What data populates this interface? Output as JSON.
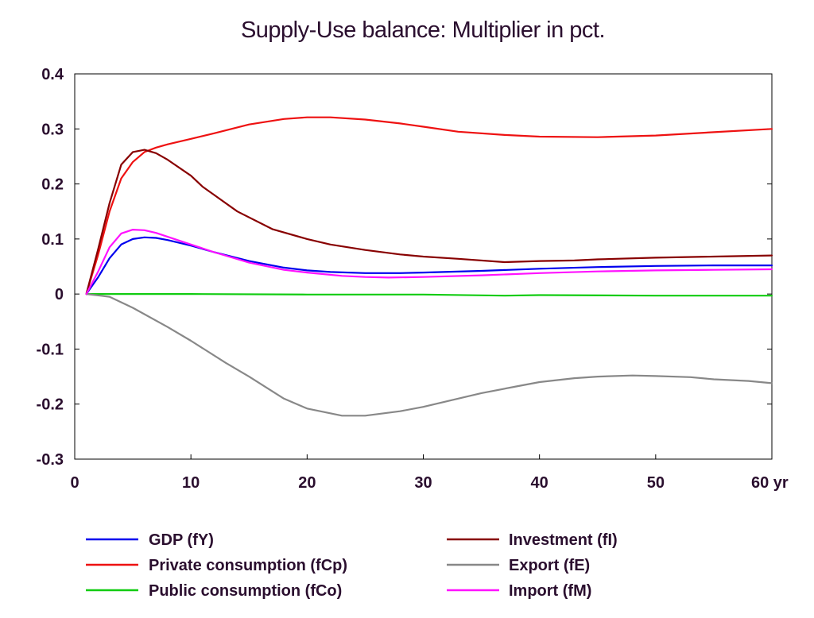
{
  "chart_data": {
    "type": "line",
    "title": "Supply-Use balance: Multiplier in pct.",
    "x_unit_label": "yr",
    "xlim": [
      0,
      60
    ],
    "ylim": [
      -0.3,
      0.4
    ],
    "x_ticks": [
      0,
      10,
      20,
      30,
      40,
      50,
      60
    ],
    "x_tick_labels": [
      "0",
      "10",
      "20",
      "30",
      "40",
      "50",
      "60 yr"
    ],
    "y_ticks": [
      -0.3,
      -0.2,
      -0.1,
      0,
      0.1,
      0.2,
      0.3,
      0.4
    ],
    "y_tick_labels": [
      "-0.3",
      "-0.2",
      "-0.1",
      "0",
      "0.1",
      "0.2",
      "0.3",
      "0.4"
    ],
    "grid": false,
    "legend_position": "bottom",
    "series": [
      {
        "name": "GDP (fY)",
        "color": "#0000ee",
        "x": [
          1,
          2,
          3,
          4,
          5,
          6,
          7,
          8,
          10,
          12,
          15,
          18,
          20,
          22,
          25,
          28,
          30,
          35,
          40,
          45,
          50,
          55,
          60
        ],
        "y": [
          0,
          0.03,
          0.065,
          0.09,
          0.1,
          0.103,
          0.102,
          0.098,
          0.088,
          0.076,
          0.06,
          0.048,
          0.043,
          0.04,
          0.038,
          0.038,
          0.039,
          0.042,
          0.046,
          0.049,
          0.051,
          0.052,
          0.052
        ]
      },
      {
        "name": "Private consumption (fCp)",
        "color": "#ee1111",
        "x": [
          1,
          2,
          3,
          4,
          5,
          6,
          7,
          8,
          10,
          12,
          15,
          18,
          20,
          22,
          25,
          28,
          30,
          33,
          37,
          40,
          45,
          50,
          55,
          60
        ],
        "y": [
          0,
          0.07,
          0.15,
          0.21,
          0.24,
          0.258,
          0.266,
          0.272,
          0.282,
          0.292,
          0.308,
          0.318,
          0.321,
          0.321,
          0.317,
          0.31,
          0.304,
          0.295,
          0.289,
          0.286,
          0.285,
          0.288,
          0.294,
          0.3
        ]
      },
      {
        "name": "Public consumption (fCo)",
        "color": "#11cc11",
        "x": [
          1,
          10,
          20,
          30,
          37,
          40,
          50,
          60
        ],
        "y": [
          0,
          0,
          -0.001,
          -0.001,
          -0.003,
          -0.002,
          -0.003,
          -0.003
        ]
      },
      {
        "name": "Investment (fI)",
        "color": "#880000",
        "x": [
          1,
          2,
          3,
          4,
          5,
          6,
          7,
          8,
          10,
          11,
          12,
          14,
          17,
          20,
          22,
          25,
          28,
          30,
          33,
          37,
          40,
          43,
          45,
          50,
          55,
          60
        ],
        "y": [
          0,
          0.08,
          0.165,
          0.235,
          0.258,
          0.262,
          0.256,
          0.244,
          0.215,
          0.195,
          0.18,
          0.15,
          0.118,
          0.1,
          0.09,
          0.08,
          0.072,
          0.068,
          0.064,
          0.058,
          0.06,
          0.061,
          0.063,
          0.066,
          0.068,
          0.07
        ]
      },
      {
        "name": "Export (fE)",
        "color": "#888888",
        "x": [
          1,
          3,
          5,
          8,
          10,
          13,
          15,
          18,
          20,
          23,
          25,
          28,
          30,
          33,
          35,
          38,
          40,
          43,
          45,
          48,
          50,
          53,
          55,
          58,
          60
        ],
        "y": [
          0,
          -0.005,
          -0.025,
          -0.06,
          -0.085,
          -0.125,
          -0.15,
          -0.19,
          -0.208,
          -0.221,
          -0.221,
          -0.213,
          -0.205,
          -0.19,
          -0.18,
          -0.168,
          -0.16,
          -0.153,
          -0.15,
          -0.148,
          -0.149,
          -0.151,
          -0.155,
          -0.158,
          -0.162
        ]
      },
      {
        "name": "Import (fM)",
        "color": "#ff11ff",
        "x": [
          1,
          2,
          3,
          4,
          5,
          6,
          7,
          8,
          10,
          12,
          15,
          18,
          20,
          23,
          25,
          27,
          30,
          35,
          40,
          45,
          50,
          55,
          60
        ],
        "y": [
          0,
          0.04,
          0.085,
          0.11,
          0.117,
          0.116,
          0.111,
          0.104,
          0.09,
          0.076,
          0.057,
          0.044,
          0.039,
          0.033,
          0.031,
          0.03,
          0.031,
          0.034,
          0.038,
          0.041,
          0.043,
          0.044,
          0.045
        ]
      }
    ]
  }
}
